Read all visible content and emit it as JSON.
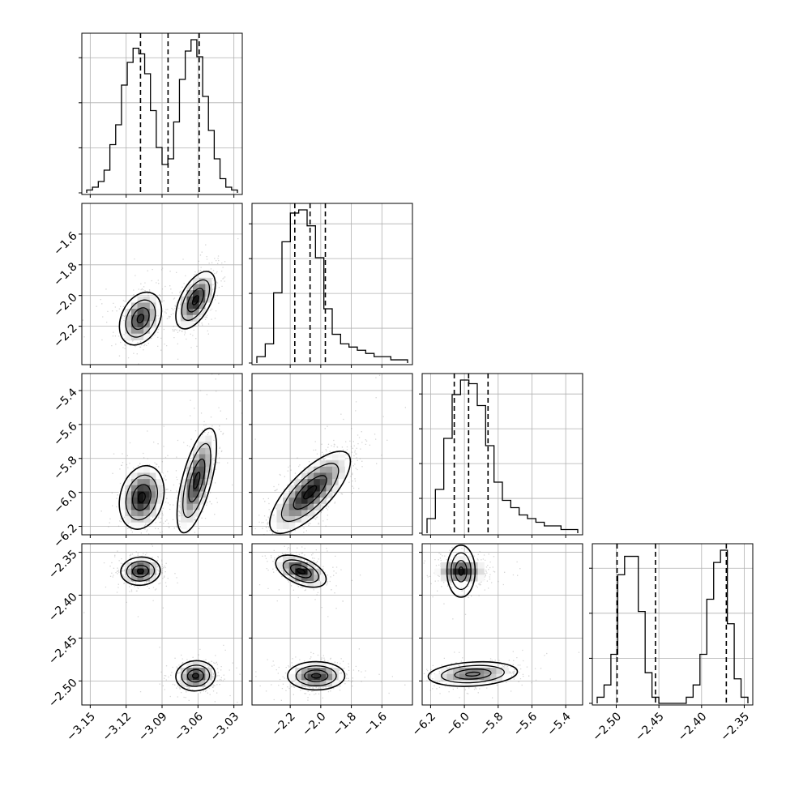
{
  "chart_data": {
    "type": "corner",
    "n_params": 4,
    "grid": true,
    "parameters": [
      {
        "index": 0,
        "range": [
          -3.157,
          -3.023
        ],
        "ticks": [
          -3.15,
          -3.12,
          -3.09,
          -3.06,
          -3.03
        ],
        "tick_labels": [
          "−3.15",
          "−3.12",
          "−3.09",
          "−3.06",
          "−3.03"
        ],
        "quantiles": [
          -3.108,
          -3.085,
          -3.059
        ]
      },
      {
        "index": 1,
        "range": [
          -2.45,
          -1.4
        ],
        "ticks": [
          -2.2,
          -2.0,
          -1.8,
          -1.6
        ],
        "tick_labels": [
          "−2.2",
          "−2.0",
          "−1.8",
          "−1.6"
        ],
        "quantiles": [
          -2.17,
          -2.07,
          -1.97
        ]
      },
      {
        "index": 2,
        "range": [
          -6.25,
          -5.3
        ],
        "ticks": [
          -6.2,
          -6.0,
          -5.8,
          -5.6,
          -5.4
        ],
        "tick_labels": [
          "−6.2",
          "−6.0",
          "−5.8",
          "−5.6",
          "−5.4"
        ],
        "quantiles": [
          -6.06,
          -5.975,
          -5.86
        ]
      },
      {
        "index": 3,
        "range": [
          -2.528,
          -2.34
        ],
        "ticks": [
          -2.5,
          -2.45,
          -2.4,
          -2.35
        ],
        "tick_labels": [
          "−2.50",
          "−2.45",
          "−2.40",
          "−2.35"
        ],
        "quantiles": [
          -2.499,
          -2.454,
          -2.371
        ]
      }
    ],
    "histograms": [
      {
        "param": 0,
        "y_ticks": 3,
        "counts": [
          1,
          2,
          4,
          8,
          17,
          24,
          38,
          46,
          51,
          49,
          42,
          29,
          16,
          10,
          12,
          25,
          40,
          50,
          54,
          48,
          34,
          22,
          12,
          5,
          2,
          1
        ]
      },
      {
        "param": 1,
        "y_ticks": 4,
        "counts": [
          2,
          6,
          22,
          38,
          47,
          48,
          43,
          33,
          17,
          9,
          6,
          5,
          4,
          3,
          2,
          2,
          1,
          1
        ]
      },
      {
        "param": 2,
        "y_ticks": 4,
        "counts": [
          4,
          12,
          26,
          38,
          42,
          41,
          35,
          24,
          14,
          9,
          7,
          5,
          4,
          3,
          2,
          2,
          1,
          1
        ]
      },
      {
        "param": 3,
        "y_ticks": 3,
        "counts": [
          1,
          3,
          8,
          21,
          24,
          24,
          15,
          5,
          1,
          0,
          0,
          0,
          0,
          1,
          3,
          8,
          17,
          23,
          25,
          13,
          4,
          1
        ]
      }
    ],
    "density_pairs": [
      {
        "x_param": 0,
        "y_param": 1,
        "modes": [
          {
            "center": [
              -3.108,
              -2.15
            ],
            "sx": 0.008,
            "sy": 0.078,
            "rho": 0.3,
            "w": 0.5
          },
          {
            "center": [
              -3.062,
              -2.03
            ],
            "sx": 0.0075,
            "sy": 0.085,
            "rho": 0.55,
            "w": 0.5
          }
        ]
      },
      {
        "x_param": 0,
        "y_param": 2,
        "modes": [
          {
            "center": [
              -3.107,
              -6.03
            ],
            "sx": 0.0085,
            "sy": 0.085,
            "rho": 0.2,
            "w": 0.5
          },
          {
            "center": [
              -3.061,
              -5.93
            ],
            "sx": 0.0075,
            "sy": 0.14,
            "rho": 0.65,
            "w": 0.5
          }
        ]
      },
      {
        "x_param": 0,
        "y_param": 3,
        "modes": [
          {
            "center": [
              -3.108,
              -2.372
            ],
            "sx": 0.0075,
            "sy": 0.0075,
            "rho": 0.05,
            "w": 0.5
          },
          {
            "center": [
              -3.062,
              -2.494
            ],
            "sx": 0.0075,
            "sy": 0.008,
            "rho": 0.05,
            "w": 0.5
          }
        ]
      },
      {
        "x_param": 1,
        "y_param": 2,
        "modes": [
          {
            "center": [
              -2.07,
              -6.0
            ],
            "sx": 0.12,
            "sy": 0.11,
            "rho": 0.75,
            "w": 1.0
          }
        ]
      },
      {
        "x_param": 1,
        "y_param": 3,
        "modes": [
          {
            "center": [
              -2.13,
              -2.372
            ],
            "sx": 0.075,
            "sy": 0.0085,
            "rho": -0.5,
            "w": 0.5
          },
          {
            "center": [
              -2.03,
              -2.494
            ],
            "sx": 0.085,
            "sy": 0.0075,
            "rho": 0.0,
            "w": 0.5
          }
        ]
      },
      {
        "x_param": 2,
        "y_param": 3,
        "modes": [
          {
            "center": [
              -6.02,
              -2.372
            ],
            "sx": 0.07,
            "sy": 0.0075,
            "rho": 0.0,
            "w": 0.5
          },
          {
            "center": [
              -5.95,
              -2.492
            ],
            "sx": 0.12,
            "sy": 0.0065,
            "rho": 0.2,
            "w": 0.5
          }
        ]
      }
    ]
  }
}
